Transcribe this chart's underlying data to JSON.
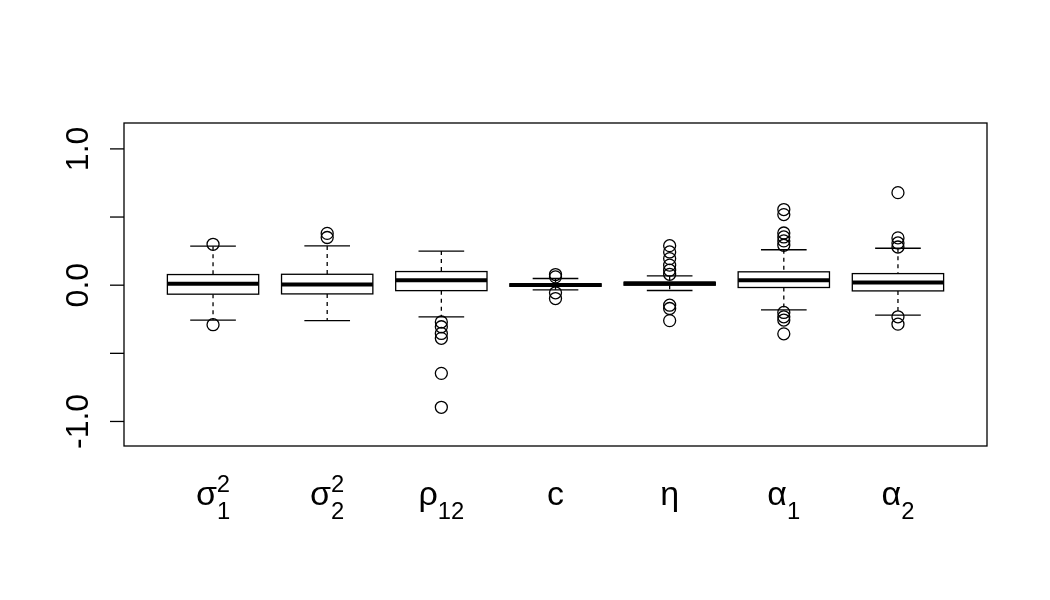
{
  "chart_data": {
    "type": "box",
    "categories": [
      "σ$_{1}$$^{2}$",
      "σ$_{2}$$^{2}$",
      "ρ$_{12}$",
      "c",
      "η",
      "α$_{1}$",
      "α$_{2}$"
    ],
    "ylim": [
      -1.18,
      1.19
    ],
    "yticks": [
      {
        "value": -1,
        "label": "-1.0"
      },
      {
        "value": -0.5,
        "label": null
      },
      {
        "value": 0,
        "label": "0.0"
      },
      {
        "value": 0.5,
        "label": null
      },
      {
        "value": 1,
        "label": "1.0"
      }
    ],
    "boxes": [
      {
        "low": -0.256,
        "q1": -0.066,
        "median": 0.01,
        "q3": 0.078,
        "high": 0.286,
        "outliers": [
          0.3,
          -0.29
        ]
      },
      {
        "low": -0.26,
        "q1": -0.064,
        "median": 0.005,
        "q3": 0.08,
        "high": 0.288,
        "outliers": [
          0.38,
          0.35
        ]
      },
      {
        "low": -0.232,
        "q1": -0.04,
        "median": 0.037,
        "q3": 0.1,
        "high": 0.25,
        "outliers": [
          -0.27,
          -0.305,
          -0.354,
          -0.39,
          -0.647,
          -0.896
        ]
      },
      {
        "low": -0.034,
        "q1": -0.008,
        "median": 0.002,
        "q3": 0.01,
        "high": 0.049,
        "outliers": [
          0.078,
          0.061,
          -0.056,
          -0.098
        ]
      },
      {
        "low": -0.039,
        "q1": 0.0,
        "median": 0.012,
        "q3": 0.022,
        "high": 0.068,
        "outliers": [
          0.29,
          0.244,
          0.195,
          0.147,
          0.11,
          0.08,
          -0.147,
          -0.171,
          -0.26
        ]
      },
      {
        "low": -0.181,
        "q1": -0.017,
        "median": 0.037,
        "q3": 0.098,
        "high": 0.26,
        "outliers": [
          0.555,
          0.518,
          0.383,
          0.354,
          0.325,
          0.293,
          -0.2,
          -0.232,
          -0.256,
          -0.357
        ]
      },
      {
        "low": -0.22,
        "q1": -0.042,
        "median": 0.02,
        "q3": 0.085,
        "high": 0.271,
        "outliers": [
          0.679,
          0.347,
          0.31,
          0.28,
          -0.232,
          -0.286
        ]
      }
    ],
    "marker": "circle",
    "grid": false
  }
}
